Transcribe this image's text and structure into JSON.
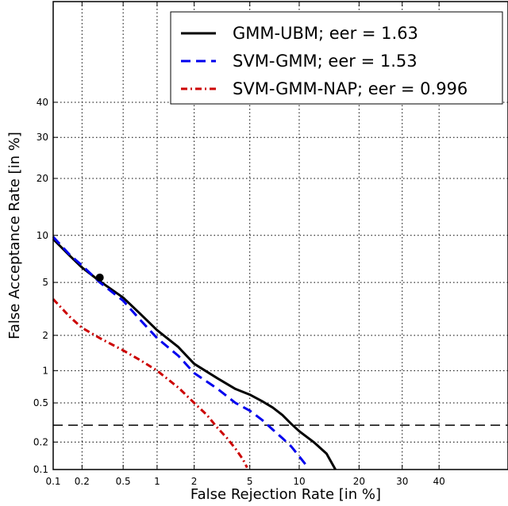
{
  "chart_data": {
    "type": "line",
    "title": "",
    "xlabel": "False Rejection Rate [in %]",
    "ylabel": "False Acceptance Rate [in %]",
    "xscale": "probit",
    "yscale": "probit",
    "xlim": [
      0.1,
      60
    ],
    "ylim": [
      0.1,
      70
    ],
    "grid": true,
    "legend_position": "top-right",
    "x_ticks": [
      0.1,
      0.2,
      0.5,
      1,
      2,
      5,
      10,
      20,
      30,
      40
    ],
    "x_tick_labels": [
      "0.1",
      "0.2",
      "0.5",
      "1",
      "2",
      "5",
      "10",
      "20",
      "30",
      "40"
    ],
    "y_ticks": [
      0.1,
      0.2,
      0.5,
      1,
      2,
      5,
      10,
      20,
      30,
      40
    ],
    "y_tick_labels": [
      "0.1",
      "0.2",
      "0.5",
      "1",
      "2",
      "5",
      "10",
      "20",
      "30",
      "40"
    ],
    "series": [
      {
        "name": "GMM-UBM; eer = 1.63",
        "color": "#000000",
        "style": "solid",
        "x": [
          0.1,
          0.15,
          0.2,
          0.3,
          0.5,
          0.7,
          1.0,
          1.5,
          2.0,
          3.0,
          4.0,
          5.0,
          6.0,
          7.0,
          8.0,
          9.0,
          10.0,
          12.0,
          14.0,
          15.5
        ],
        "y": [
          9.5,
          7.5,
          6.3,
          5.1,
          3.9,
          3.0,
          2.2,
          1.6,
          1.15,
          0.85,
          0.68,
          0.6,
          0.52,
          0.45,
          0.38,
          0.31,
          0.26,
          0.2,
          0.15,
          0.1
        ]
      },
      {
        "name": "SVM-GMM; eer = 1.53",
        "color": "#0000ee",
        "style": "dashed",
        "x": [
          0.1,
          0.15,
          0.2,
          0.3,
          0.5,
          0.7,
          1.0,
          1.5,
          2.0,
          3.0,
          4.0,
          5.0,
          6.0,
          7.0,
          8.0,
          9.0,
          10.0,
          11.0
        ],
        "y": [
          9.8,
          7.6,
          6.5,
          5.0,
          3.7,
          2.7,
          1.9,
          1.35,
          0.95,
          0.68,
          0.5,
          0.42,
          0.34,
          0.27,
          0.22,
          0.18,
          0.14,
          0.11
        ]
      },
      {
        "name": "SVM-GMM-NAP; eer = 0.996",
        "color": "#cc0000",
        "style": "dash-dot",
        "x": [
          0.1,
          0.15,
          0.2,
          0.3,
          0.5,
          0.7,
          1.0,
          1.5,
          2.0,
          2.5,
          3.0,
          3.5,
          4.0,
          4.5,
          4.8
        ],
        "y": [
          3.8,
          2.8,
          2.3,
          1.9,
          1.5,
          1.25,
          1.0,
          0.7,
          0.5,
          0.38,
          0.28,
          0.22,
          0.17,
          0.13,
          0.105
        ]
      }
    ],
    "markers": [
      {
        "x": 0.3,
        "y": 5.4,
        "color": "#000000"
      }
    ],
    "reference_lines": [
      {
        "orientation": "horizontal",
        "y": 0.3,
        "style": "dashed",
        "color": "#000000"
      }
    ]
  }
}
